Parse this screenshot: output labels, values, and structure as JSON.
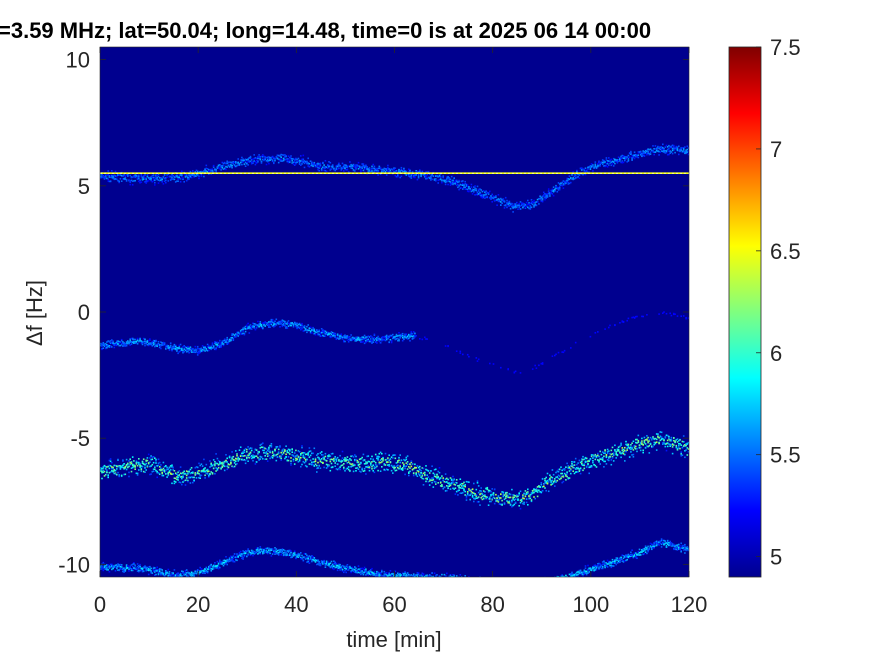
{
  "chart_data": {
    "type": "heatmap",
    "title": "=3.59 MHz;  lat=50.04; long=14.48, time=0 is at 2025 06 14 00:00",
    "xlabel": "time [min]",
    "ylabel": "Δf [Hz]",
    "xlim": [
      0,
      120
    ],
    "ylim": [
      -10.5,
      10.5
    ],
    "x_ticks": [
      "0",
      "20",
      "40",
      "60",
      "80",
      "100",
      "120"
    ],
    "y_ticks": [
      "10",
      "5",
      "0",
      "-5",
      "-10"
    ],
    "colorbar": {
      "range": [
        4.9,
        7.5
      ],
      "ticks": [
        "7.5",
        "7",
        "6.5",
        "6",
        "5.5",
        "5"
      ],
      "colormap": "jet"
    },
    "background_value": 4.95,
    "horizontal_line": {
      "y": 5.5,
      "value": 6.5
    },
    "traces": [
      {
        "name": "",
        "intensity": 5.7,
        "spread": 0.25,
        "points": [
          [
            0,
            5.4
          ],
          [
            10,
            5.3
          ],
          [
            18,
            5.4
          ],
          [
            25,
            5.8
          ],
          [
            32,
            6.1
          ],
          [
            38,
            6.1
          ],
          [
            45,
            5.8
          ],
          [
            52,
            5.75
          ],
          [
            60,
            5.6
          ],
          [
            65,
            5.5
          ],
          [
            72,
            5.2
          ],
          [
            78,
            4.7
          ],
          [
            84,
            4.2
          ],
          [
            88,
            4.3
          ],
          [
            92,
            4.8
          ],
          [
            97,
            5.5
          ],
          [
            102,
            5.9
          ],
          [
            108,
            6.2
          ],
          [
            114,
            6.5
          ],
          [
            120,
            6.4
          ]
        ]
      },
      {
        "name": "",
        "intensity": 5.8,
        "spread": 0.2,
        "points": [
          [
            0,
            -1.3
          ],
          [
            8,
            -1.1
          ],
          [
            15,
            -1.4
          ],
          [
            20,
            -1.5
          ],
          [
            25,
            -1.2
          ],
          [
            30,
            -0.6
          ],
          [
            35,
            -0.4
          ],
          [
            40,
            -0.5
          ],
          [
            45,
            -0.8
          ],
          [
            50,
            -1.0
          ],
          [
            55,
            -1.05
          ],
          [
            60,
            -1.0
          ],
          [
            64,
            -0.9
          ]
        ]
      },
      {
        "name": "",
        "intensity": 5.25,
        "spread": 0.2,
        "points": [
          [
            64,
            -0.9
          ],
          [
            70,
            -1.3
          ],
          [
            75,
            -1.7
          ],
          [
            80,
            -2.1
          ],
          [
            86,
            -2.4
          ],
          [
            90,
            -2.0
          ],
          [
            96,
            -1.3
          ],
          [
            102,
            -0.7
          ],
          [
            108,
            -0.2
          ],
          [
            114,
            0.0
          ],
          [
            118,
            -0.1
          ],
          [
            120,
            -0.2
          ]
        ]
      },
      {
        "name": "",
        "intensity": 6.4,
        "spread": 0.45,
        "points": [
          [
            0,
            -6.3
          ],
          [
            5,
            -6.1
          ],
          [
            10,
            -6.0
          ],
          [
            16,
            -6.5
          ],
          [
            20,
            -6.3
          ],
          [
            25,
            -6.0
          ],
          [
            30,
            -5.6
          ],
          [
            35,
            -5.5
          ],
          [
            40,
            -5.7
          ],
          [
            46,
            -5.9
          ],
          [
            52,
            -6.0
          ],
          [
            58,
            -5.9
          ],
          [
            62,
            -6.0
          ],
          [
            66,
            -6.4
          ],
          [
            72,
            -6.8
          ],
          [
            78,
            -7.2
          ],
          [
            84,
            -7.4
          ],
          [
            88,
            -7.2
          ],
          [
            92,
            -6.6
          ],
          [
            98,
            -6.0
          ],
          [
            104,
            -5.6
          ],
          [
            110,
            -5.2
          ],
          [
            114,
            -5.0
          ],
          [
            120,
            -5.4
          ]
        ]
      },
      {
        "name": "",
        "intensity": 5.9,
        "spread": 0.2,
        "points": [
          [
            0,
            -10.1
          ],
          [
            8,
            -10.1
          ],
          [
            15,
            -10.4
          ],
          [
            20,
            -10.3
          ],
          [
            25,
            -9.9
          ],
          [
            30,
            -9.5
          ],
          [
            35,
            -9.4
          ],
          [
            40,
            -9.6
          ],
          [
            45,
            -9.9
          ],
          [
            52,
            -10.2
          ],
          [
            58,
            -10.4
          ],
          [
            64,
            -10.45
          ],
          [
            70,
            -10.5
          ],
          [
            80,
            -10.7
          ],
          [
            86,
            -10.8
          ],
          [
            92,
            -10.6
          ],
          [
            98,
            -10.3
          ],
          [
            104,
            -9.9
          ],
          [
            110,
            -9.5
          ],
          [
            114,
            -9.1
          ],
          [
            120,
            -9.4
          ]
        ]
      }
    ]
  }
}
